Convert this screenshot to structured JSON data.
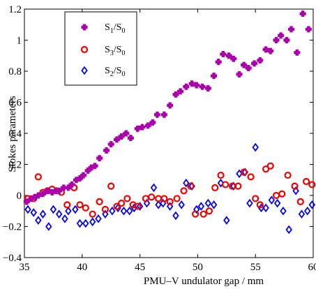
{
  "chart_data": {
    "type": "scatter",
    "xlabel": "PMU–V undulator gap / mm",
    "ylabel": "Stokes parameters",
    "xlim": [
      35,
      60
    ],
    "ylim": [
      -0.4,
      1.2
    ],
    "xticks": [
      35,
      40,
      45,
      50,
      55,
      60
    ],
    "yticks": [
      -0.4,
      -0.2,
      0,
      0.2,
      0.4,
      0.6,
      0.8,
      1,
      1.2
    ],
    "xtick_labels": [
      "35",
      "40",
      "45",
      "50",
      "55",
      "60"
    ],
    "ytick_labels": [
      "−0.4",
      "−0.2",
      "0",
      "0.2",
      "0.4",
      "0.6",
      "0.8",
      "1",
      "1.2"
    ],
    "grid": false,
    "legend_position": "top-left",
    "series": [
      {
        "name": "S1/S0",
        "legend_main": "S",
        "legend_sub1": "1",
        "legend_mid": "/S",
        "legend_sub2": "0",
        "marker": "plus",
        "color": "#aa00aa",
        "points": [
          [
            35.2,
            -0.04
          ],
          [
            35.6,
            -0.02
          ],
          [
            35.9,
            -0.01
          ],
          [
            36.2,
            0.0
          ],
          [
            36.6,
            0.01
          ],
          [
            37.0,
            0.03
          ],
          [
            37.4,
            0.02
          ],
          [
            37.7,
            0.03
          ],
          [
            38.0,
            0.03
          ],
          [
            38.4,
            0.05
          ],
          [
            38.8,
            0.05
          ],
          [
            39.1,
            0.07
          ],
          [
            39.5,
            0.1
          ],
          [
            39.8,
            0.11
          ],
          [
            40.1,
            0.13
          ],
          [
            40.5,
            0.16
          ],
          [
            40.8,
            0.18
          ],
          [
            41.1,
            0.19
          ],
          [
            41.5,
            0.24
          ],
          [
            42.1,
            0.29
          ],
          [
            42.5,
            0.33
          ],
          [
            43.0,
            0.36
          ],
          [
            43.4,
            0.38
          ],
          [
            43.8,
            0.4
          ],
          [
            44.2,
            0.37
          ],
          [
            44.8,
            0.43
          ],
          [
            45.2,
            0.44
          ],
          [
            45.7,
            0.45
          ],
          [
            46.1,
            0.47
          ],
          [
            46.5,
            0.52
          ],
          [
            47.1,
            0.52
          ],
          [
            47.6,
            0.58
          ],
          [
            48.1,
            0.65
          ],
          [
            48.5,
            0.67
          ],
          [
            49.0,
            0.7
          ],
          [
            49.5,
            0.72
          ],
          [
            49.9,
            0.71
          ],
          [
            50.4,
            0.7
          ],
          [
            50.9,
            0.69
          ],
          [
            51.4,
            0.77
          ],
          [
            51.8,
            0.86
          ],
          [
            52.2,
            0.91
          ],
          [
            52.7,
            0.9
          ],
          [
            53.1,
            0.88
          ],
          [
            53.6,
            0.78
          ],
          [
            54.0,
            0.84
          ],
          [
            54.4,
            0.82
          ],
          [
            54.9,
            0.85
          ],
          [
            55.4,
            0.87
          ],
          [
            55.9,
            0.94
          ],
          [
            56.3,
            0.93
          ],
          [
            56.8,
            1.0
          ],
          [
            57.2,
            1.03
          ],
          [
            57.7,
            1.0
          ],
          [
            58.1,
            1.07
          ],
          [
            58.6,
            0.92
          ],
          [
            59.1,
            1.17
          ],
          [
            59.6,
            1.07
          ]
        ]
      },
      {
        "name": "S3/S0",
        "legend_main": "S",
        "legend_sub1": "3",
        "legend_mid": "/S",
        "legend_sub2": "0",
        "marker": "circle",
        "color": "#ee0000",
        "points": [
          [
            35.3,
            -0.02
          ],
          [
            35.8,
            -0.02
          ],
          [
            36.2,
            0.12
          ],
          [
            36.6,
            0.02
          ],
          [
            37.0,
            0.03
          ],
          [
            37.4,
            0.04
          ],
          [
            37.8,
            0.03
          ],
          [
            38.2,
            0.02
          ],
          [
            38.7,
            -0.06
          ],
          [
            39.3,
            0.05
          ],
          [
            39.8,
            -0.06
          ],
          [
            40.3,
            -0.08
          ],
          [
            40.9,
            -0.12
          ],
          [
            41.5,
            -0.04
          ],
          [
            42.0,
            -0.09
          ],
          [
            42.5,
            0.06
          ],
          [
            43.0,
            -0.07
          ],
          [
            43.4,
            -0.05
          ],
          [
            43.9,
            -0.02
          ],
          [
            44.4,
            -0.06
          ],
          [
            44.8,
            -0.07
          ],
          [
            45.5,
            -0.02
          ],
          [
            46.0,
            -0.01
          ],
          [
            46.6,
            -0.02
          ],
          [
            47.1,
            -0.02
          ],
          [
            47.6,
            -0.04
          ],
          [
            48.2,
            -0.02
          ],
          [
            48.8,
            0.03
          ],
          [
            49.4,
            0.06
          ],
          [
            49.8,
            -0.12
          ],
          [
            50.5,
            -0.12
          ],
          [
            51.0,
            -0.1
          ],
          [
            51.5,
            0.05
          ],
          [
            52.0,
            0.13
          ],
          [
            52.4,
            0.07
          ],
          [
            53.0,
            0.06
          ],
          [
            53.5,
            0.06
          ],
          [
            54.0,
            0.15
          ],
          [
            54.6,
            0.12
          ],
          [
            55.0,
            -0.02
          ],
          [
            55.4,
            -0.06
          ],
          [
            55.9,
            0.17
          ],
          [
            56.3,
            0.19
          ],
          [
            56.8,
            0.0
          ],
          [
            57.3,
            0.01
          ],
          [
            57.8,
            0.13
          ],
          [
            58.4,
            0.06
          ],
          [
            58.9,
            -0.04
          ],
          [
            59.4,
            0.09
          ],
          [
            59.9,
            0.07
          ]
        ]
      },
      {
        "name": "S2/S0",
        "legend_main": "S",
        "legend_sub1": "2",
        "legend_mid": "/S",
        "legend_sub2": "0",
        "marker": "diamond",
        "color": "#0000ee",
        "points": [
          [
            35.3,
            -0.09
          ],
          [
            35.8,
            -0.11
          ],
          [
            36.2,
            -0.16
          ],
          [
            36.6,
            -0.12
          ],
          [
            37.1,
            -0.2
          ],
          [
            37.5,
            -0.09
          ],
          [
            38.0,
            -0.12
          ],
          [
            38.5,
            -0.15
          ],
          [
            38.8,
            -0.1
          ],
          [
            39.4,
            -0.09
          ],
          [
            39.8,
            -0.18
          ],
          [
            40.3,
            -0.18
          ],
          [
            40.9,
            -0.17
          ],
          [
            41.4,
            -0.15
          ],
          [
            42.0,
            -0.12
          ],
          [
            42.6,
            -0.1
          ],
          [
            43.1,
            -0.08
          ],
          [
            43.6,
            -0.1
          ],
          [
            44.1,
            -0.1
          ],
          [
            44.5,
            -0.08
          ],
          [
            45.0,
            -0.07
          ],
          [
            45.6,
            -0.05
          ],
          [
            46.2,
            0.05
          ],
          [
            46.6,
            -0.06
          ],
          [
            47.0,
            -0.05
          ],
          [
            47.6,
            -0.07
          ],
          [
            48.1,
            -0.13
          ],
          [
            48.6,
            -0.06
          ],
          [
            49.0,
            0.08
          ],
          [
            49.5,
            0.06
          ],
          [
            49.9,
            -0.09
          ],
          [
            50.3,
            -0.07
          ],
          [
            50.9,
            -0.05
          ],
          [
            51.4,
            -0.06
          ],
          [
            52.0,
            0.08
          ],
          [
            52.5,
            -0.16
          ],
          [
            53.1,
            0.06
          ],
          [
            53.6,
            0.14
          ],
          [
            54.1,
            0.15
          ],
          [
            54.5,
            -0.05
          ],
          [
            55.0,
            0.31
          ],
          [
            55.5,
            -0.08
          ],
          [
            55.9,
            -0.08
          ],
          [
            56.4,
            -0.03
          ],
          [
            56.9,
            -0.05
          ],
          [
            57.4,
            -0.1
          ],
          [
            57.9,
            -0.22
          ],
          [
            58.5,
            0.03
          ],
          [
            59.0,
            -0.12
          ],
          [
            59.5,
            -0.1
          ],
          [
            59.9,
            -0.06
          ]
        ]
      }
    ]
  }
}
